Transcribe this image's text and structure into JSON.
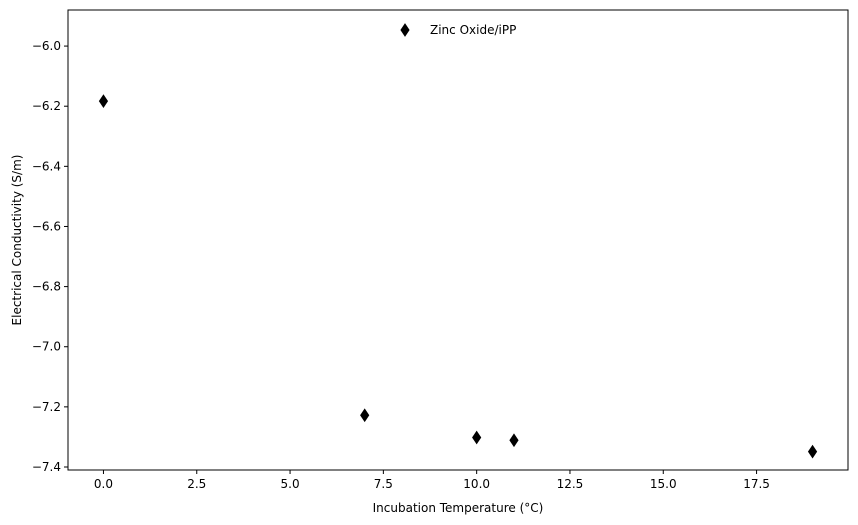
{
  "chart_data": {
    "type": "scatter",
    "title": "",
    "xlabel": "Incubation Temperature (°C)",
    "ylabel": "Electrical Conductivity (S/m)",
    "xlim": [
      -0.95,
      19.95
    ],
    "ylim": [
      -7.41,
      -5.88
    ],
    "xticks": [
      0.0,
      2.5,
      5.0,
      7.5,
      10.0,
      12.5,
      15.0,
      17.5
    ],
    "xtick_labels": [
      "0.0",
      "2.5",
      "5.0",
      "7.5",
      "10.0",
      "12.5",
      "15.0",
      "17.5"
    ],
    "yticks": [
      -6.0,
      -6.2,
      -6.4,
      -6.6,
      -6.8,
      -7.0,
      -7.2,
      -7.4
    ],
    "ytick_labels": [
      "−6.0",
      "−6.2",
      "−6.4",
      "−6.6",
      "−6.8",
      "−7.0",
      "−7.2",
      "−7.4"
    ],
    "grid": false,
    "legend_position": "upper center",
    "series": [
      {
        "name": "Zinc Oxide/iPP",
        "marker": "thin-diamond",
        "color": "#000000",
        "x": [
          0,
          7,
          10,
          11,
          19
        ],
        "y": [
          -6.183,
          -7.228,
          -7.302,
          -7.311,
          -7.349
        ]
      }
    ]
  }
}
